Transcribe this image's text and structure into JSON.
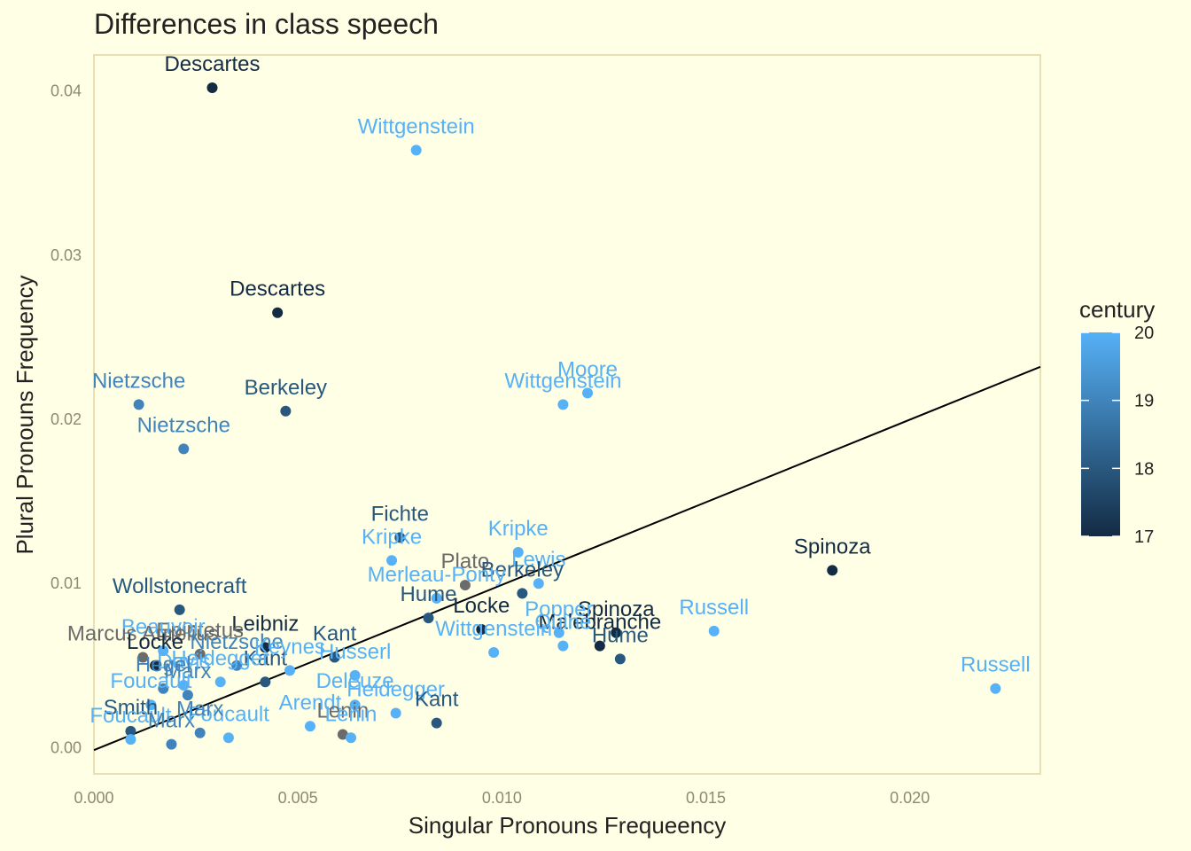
{
  "chart_data": {
    "type": "scatter",
    "title": "Differences in class speech",
    "xlabel": "Singular Pronouns Frequeency",
    "ylabel": "Plural Pronouns Frequency",
    "xlim": [
      0,
      0.0232
    ],
    "ylim": [
      -0.0016,
      0.0422
    ],
    "x_ticks": [
      0.0,
      0.005,
      0.01,
      0.015,
      0.02
    ],
    "x_tick_labels": [
      "0.000",
      "0.005",
      "0.010",
      "0.015",
      "0.020"
    ],
    "y_ticks": [
      0.0,
      0.01,
      0.02,
      0.03,
      0.04
    ],
    "y_tick_labels": [
      "0.00",
      "0.01",
      "0.02",
      "0.03",
      "0.04"
    ],
    "grid": false,
    "legend": {
      "title": "century",
      "type": "colorbar",
      "placement": "right",
      "min": 17,
      "max": 20,
      "ticks": [
        17,
        18,
        19,
        20
      ],
      "colors": {
        "17": "#132b43",
        "18": "#24476c",
        "19": "#356897",
        "20": "#56b1f7"
      }
    },
    "trend_line": {
      "x": [
        0.0,
        0.0232
      ],
      "y": [
        -0.00015,
        0.0232
      ]
    },
    "na_color": "#6b6b6b",
    "points": [
      {
        "label": "Descartes",
        "x": 0.0029,
        "y": 0.0402,
        "century": 17
      },
      {
        "label": "Wittgenstein",
        "x": 0.0079,
        "y": 0.0364,
        "century": 20
      },
      {
        "label": "Descartes",
        "x": 0.0045,
        "y": 0.0265,
        "century": 17
      },
      {
        "label": "Nietzsche",
        "x": 0.0011,
        "y": 0.0209,
        "century": 19
      },
      {
        "label": "Nietzsche",
        "x": 0.0022,
        "y": 0.0182,
        "century": 19
      },
      {
        "label": "Berkeley",
        "x": 0.0047,
        "y": 0.0205,
        "century": 18
      },
      {
        "label": "Wittgenstein",
        "x": 0.0115,
        "y": 0.0209,
        "century": 20
      },
      {
        "label": "Moore",
        "x": 0.0121,
        "y": 0.0216,
        "century": 20
      },
      {
        "label": "Fichte",
        "x": 0.0075,
        "y": 0.0128,
        "century": 18
      },
      {
        "label": "Kripke",
        "x": 0.0073,
        "y": 0.0114,
        "century": 20
      },
      {
        "label": "Kripke",
        "x": 0.0104,
        "y": 0.0119,
        "century": 20
      },
      {
        "label": "Spinoza",
        "x": 0.0181,
        "y": 0.0108,
        "century": 17
      },
      {
        "label": "Wollstonecraft",
        "x": 0.0021,
        "y": 0.0084,
        "century": 18
      },
      {
        "label": "Plato",
        "x": 0.0091,
        "y": 0.0099,
        "century": null
      },
      {
        "label": "Lewis",
        "x": 0.0109,
        "y": 0.01,
        "century": 20
      },
      {
        "label": "Berkeley",
        "x": 0.0105,
        "y": 0.0094,
        "century": 18
      },
      {
        "label": "Merleau-Ponty",
        "x": 0.0084,
        "y": 0.0091,
        "century": 20
      },
      {
        "label": "Hume",
        "x": 0.0082,
        "y": 0.0079,
        "century": 18
      },
      {
        "label": "Locke",
        "x": 0.0095,
        "y": 0.0072,
        "century": 17
      },
      {
        "label": "Spinoza",
        "x": 0.0128,
        "y": 0.007,
        "century": 17
      },
      {
        "label": "Popper",
        "x": 0.0114,
        "y": 0.007,
        "century": 20
      },
      {
        "label": "Malebranche",
        "x": 0.0124,
        "y": 0.0062,
        "century": 17
      },
      {
        "label": "Russell",
        "x": 0.0152,
        "y": 0.0071,
        "century": 20
      },
      {
        "label": "Hume",
        "x": 0.0129,
        "y": 0.0054,
        "century": 18
      },
      {
        "label": "Quine",
        "x": 0.0115,
        "y": 0.0062,
        "century": 20
      },
      {
        "label": "Wittgenstein",
        "x": 0.0098,
        "y": 0.0058,
        "century": 20
      },
      {
        "label": "Russell",
        "x": 0.0221,
        "y": 0.0036,
        "century": 20
      },
      {
        "label": "Leibniz",
        "x": 0.0042,
        "y": 0.0061,
        "century": 17
      },
      {
        "label": "Kant",
        "x": 0.0059,
        "y": 0.0055,
        "century": 18
      },
      {
        "label": "Epictetus",
        "x": 0.0026,
        "y": 0.0057,
        "century": null
      },
      {
        "label": "Beauvoir",
        "x": 0.0017,
        "y": 0.0059,
        "century": 20
      },
      {
        "label": "Marcus Aurelius",
        "x": 0.0012,
        "y": 0.0055,
        "century": null
      },
      {
        "label": "Nietzsche",
        "x": 0.0035,
        "y": 0.005,
        "century": 19
      },
      {
        "label": "Locke",
        "x": 0.0015,
        "y": 0.005,
        "century": 17
      },
      {
        "label": "Kant",
        "x": 0.0042,
        "y": 0.004,
        "century": 18
      },
      {
        "label": "Davis",
        "x": 0.0022,
        "y": 0.0038,
        "century": 20
      },
      {
        "label": "Heidegger",
        "x": 0.0031,
        "y": 0.004,
        "century": 20
      },
      {
        "label": "Keynes",
        "x": 0.0048,
        "y": 0.0047,
        "century": 20
      },
      {
        "label": "Husserl",
        "x": 0.0064,
        "y": 0.0044,
        "century": 20
      },
      {
        "label": "Hegel",
        "x": 0.0017,
        "y": 0.0036,
        "century": 19
      },
      {
        "label": "Marx",
        "x": 0.0023,
        "y": 0.0032,
        "century": 19
      },
      {
        "label": "Deleuze",
        "x": 0.0064,
        "y": 0.0026,
        "century": 20
      },
      {
        "label": "Heidegger",
        "x": 0.0074,
        "y": 0.0021,
        "century": 20
      },
      {
        "label": "Kant",
        "x": 0.0084,
        "y": 0.0015,
        "century": 18
      },
      {
        "label": "Foucault",
        "x": 0.0014,
        "y": 0.0026,
        "century": 20
      },
      {
        "label": "Smith",
        "x": 0.0009,
        "y": 0.001,
        "century": 18
      },
      {
        "label": "Foucault",
        "x": 0.0009,
        "y": 0.0005,
        "century": 20
      },
      {
        "label": "Marx",
        "x": 0.0019,
        "y": 0.0002,
        "century": 19
      },
      {
        "label": "Arendt",
        "x": 0.0053,
        "y": 0.0013,
        "century": 20
      },
      {
        "label": "Lenin",
        "x": 0.0061,
        "y": 0.0008,
        "century": null
      },
      {
        "label": "Lenin",
        "x": 0.0063,
        "y": 0.0006,
        "century": 20
      },
      {
        "label": "Foucault",
        "x": 0.0033,
        "y": 0.0006,
        "century": 20
      },
      {
        "label": "Marx",
        "x": 0.0026,
        "y": 0.0009,
        "century": 19
      }
    ]
  }
}
